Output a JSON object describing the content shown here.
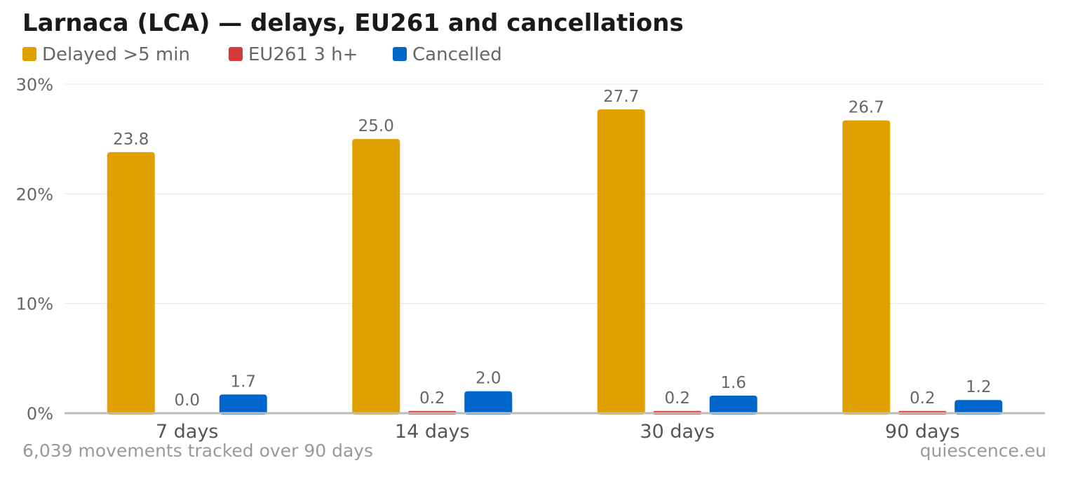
{
  "chart_data": {
    "type": "bar",
    "title": "Larnaca (LCA) — delays, EU261 and cancellations",
    "categories": [
      "7 days",
      "14 days",
      "30 days",
      "90 days"
    ],
    "series": [
      {
        "name": "Delayed >5 min",
        "color": "#e0a000",
        "values": [
          23.8,
          25.0,
          27.7,
          26.7
        ],
        "labels": [
          "23.8",
          "25.0",
          "27.7",
          "26.7"
        ]
      },
      {
        "name": "EU261 3 h+",
        "color": "#d23c3c",
        "values": [
          0.0,
          0.2,
          0.2,
          0.2
        ],
        "labels": [
          "0.0",
          "0.2",
          "0.2",
          "0.2"
        ]
      },
      {
        "name": "Cancelled",
        "color": "#0066cc",
        "values": [
          1.7,
          2.0,
          1.6,
          1.2
        ],
        "labels": [
          "1.7",
          "2.0",
          "1.6",
          "1.2"
        ]
      }
    ],
    "ylim": [
      0,
      30
    ],
    "yticks": [
      0,
      10,
      20,
      30
    ],
    "ytick_labels": [
      "0%",
      "10%",
      "20%",
      "30%"
    ],
    "xlabel": "",
    "ylabel": "",
    "grid": true,
    "legend_position": "top-left"
  },
  "footnote": "6,039 movements tracked over 90 days",
  "source": "quiescence.eu"
}
